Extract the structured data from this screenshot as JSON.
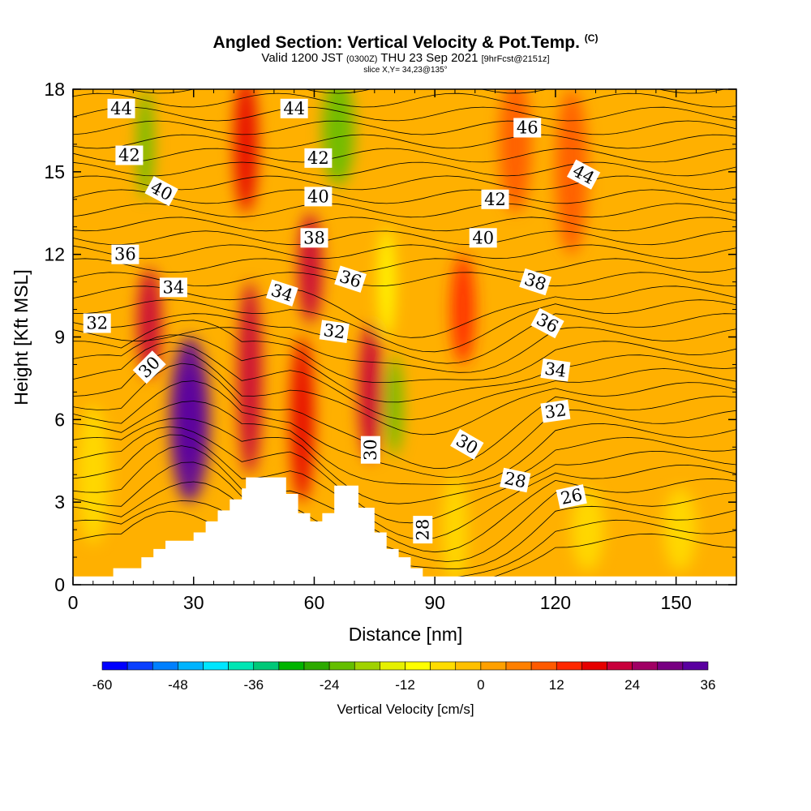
{
  "title": {
    "main": "Angled Section: Vertical Velocity & Pot.Temp.",
    "unit_tag": "(C)",
    "valid_prefix": "Valid 1200 JST",
    "utc_tag": "(0300Z)",
    "valid_date": "THU 23 Sep 2021",
    "forecast_tag": "[9hrFcst@2151z]",
    "slice": "slice X,Y= 34,23@135°"
  },
  "chart_data": {
    "type": "heatmap",
    "xlabel": "Distance [nm]",
    "ylabel": "Height [Kft MSL]",
    "xlim": [
      0,
      165
    ],
    "ylim": [
      0,
      18
    ],
    "x_ticks": [
      0,
      30,
      60,
      90,
      120,
      150
    ],
    "y_ticks": [
      0,
      3,
      6,
      9,
      12,
      15,
      18
    ],
    "colorbar": {
      "label": "Vertical Velocity [cm/s]",
      "ticks": [
        -60,
        -48,
        -36,
        -24,
        -12,
        0,
        12,
        24,
        36
      ],
      "min": -60,
      "max": 36,
      "step": 4,
      "colors": [
        "#0000ff",
        "#0a40ff",
        "#0080ff",
        "#00b4ff",
        "#00e6ff",
        "#00e6b4",
        "#00c878",
        "#00b400",
        "#2daa00",
        "#64be00",
        "#a0d200",
        "#e6f000",
        "#ffff00",
        "#ffdc00",
        "#ffc000",
        "#ffa000",
        "#ff8000",
        "#ff5a00",
        "#ff2800",
        "#e60000",
        "#c8003c",
        "#a00064",
        "#780082",
        "#5a00a0"
      ]
    },
    "terrain": [
      [
        0,
        0.3
      ],
      [
        10,
        0.3
      ],
      [
        10,
        0.6
      ],
      [
        17,
        0.6
      ],
      [
        17,
        1.0
      ],
      [
        20,
        1.0
      ],
      [
        20,
        1.3
      ],
      [
        23,
        1.3
      ],
      [
        23,
        1.6
      ],
      [
        30,
        1.6
      ],
      [
        30,
        1.9
      ],
      [
        33,
        1.9
      ],
      [
        33,
        2.3
      ],
      [
        36,
        2.3
      ],
      [
        36,
        2.7
      ],
      [
        39,
        2.7
      ],
      [
        39,
        3.1
      ],
      [
        42,
        3.1
      ],
      [
        42,
        3.5
      ],
      [
        43,
        3.5
      ],
      [
        43,
        3.9
      ],
      [
        53,
        3.9
      ],
      [
        53,
        3.3
      ],
      [
        56,
        3.3
      ],
      [
        56,
        2.6
      ],
      [
        59,
        2.6
      ],
      [
        59,
        2.3
      ],
      [
        62,
        2.3
      ],
      [
        62,
        2.6
      ],
      [
        65,
        2.6
      ],
      [
        65,
        3.6
      ],
      [
        71,
        3.6
      ],
      [
        71,
        2.8
      ],
      [
        75,
        2.8
      ],
      [
        75,
        1.9
      ],
      [
        78,
        1.9
      ],
      [
        78,
        1.3
      ],
      [
        81,
        1.3
      ],
      [
        81,
        1.0
      ],
      [
        84,
        1.0
      ],
      [
        84,
        0.6
      ],
      [
        87,
        0.6
      ],
      [
        87,
        0.3
      ],
      [
        165,
        0.3
      ]
    ],
    "velocity_cells": [
      {
        "x": 29,
        "y": 6.0,
        "rx": 5,
        "ry": 3.0,
        "value": 34
      },
      {
        "x": 29,
        "y": 6.0,
        "rx": 3,
        "ry": 1.8,
        "value": 36
      },
      {
        "x": 19,
        "y": 9.5,
        "rx": 3,
        "ry": 2.0,
        "value": 22
      },
      {
        "x": 44,
        "y": 7.5,
        "rx": 3,
        "ry": 3.5,
        "value": 22
      },
      {
        "x": 57,
        "y": 6.0,
        "rx": 3,
        "ry": 3.0,
        "value": 18
      },
      {
        "x": 59,
        "y": 11.5,
        "rx": 3,
        "ry": 2.0,
        "value": 22
      },
      {
        "x": 74,
        "y": 7.0,
        "rx": 3,
        "ry": 2.5,
        "value": 22
      },
      {
        "x": 43,
        "y": 16.0,
        "rx": 3,
        "ry": 2.5,
        "value": 18
      },
      {
        "x": 18,
        "y": 16.0,
        "rx": 2,
        "ry": 2.0,
        "value": -22
      },
      {
        "x": 66,
        "y": 16.5,
        "rx": 4,
        "ry": 2.0,
        "value": -22
      },
      {
        "x": 80,
        "y": 6.5,
        "rx": 2,
        "ry": 1.8,
        "value": -22
      },
      {
        "x": 78,
        "y": 11.0,
        "rx": 2,
        "ry": 2.0,
        "value": -10
      },
      {
        "x": 97,
        "y": 10.0,
        "rx": 3,
        "ry": 2.0,
        "value": 12
      },
      {
        "x": 110,
        "y": 16.0,
        "rx": 4,
        "ry": 2.5,
        "value": 10
      },
      {
        "x": 124,
        "y": 15.0,
        "rx": 4,
        "ry": 3.0,
        "value": 10
      },
      {
        "x": 95,
        "y": 2.0,
        "rx": 3,
        "ry": 2.0,
        "value": -8
      },
      {
        "x": 128,
        "y": 2.0,
        "rx": 4,
        "ry": 1.5,
        "value": -6
      },
      {
        "x": 151,
        "y": 2.0,
        "rx": 4,
        "ry": 1.5,
        "value": -8
      },
      {
        "x": 5,
        "y": 4.0,
        "rx": 4,
        "ry": 2.5,
        "value": -6
      }
    ],
    "contour_labels": [
      {
        "x": 12,
        "y": 17.3,
        "text": "44",
        "angle": 0
      },
      {
        "x": 14,
        "y": 15.6,
        "text": "42",
        "angle": 0
      },
      {
        "x": 22,
        "y": 14.3,
        "text": "40",
        "angle": 28
      },
      {
        "x": 13,
        "y": 12.0,
        "text": "36",
        "angle": 0
      },
      {
        "x": 25,
        "y": 10.8,
        "text": "34",
        "angle": 0
      },
      {
        "x": 6,
        "y": 9.5,
        "text": "32",
        "angle": 0
      },
      {
        "x": 19,
        "y": 7.9,
        "text": "30",
        "angle": -45
      },
      {
        "x": 55,
        "y": 17.3,
        "text": "44",
        "angle": 0
      },
      {
        "x": 61,
        "y": 15.5,
        "text": "42",
        "angle": 0
      },
      {
        "x": 61,
        "y": 14.1,
        "text": "40",
        "angle": 0
      },
      {
        "x": 60,
        "y": 12.6,
        "text": "38",
        "angle": 0
      },
      {
        "x": 69,
        "y": 11.1,
        "text": "36",
        "angle": 18
      },
      {
        "x": 52,
        "y": 10.6,
        "text": "34",
        "angle": 18
      },
      {
        "x": 65,
        "y": 9.2,
        "text": "32",
        "angle": 8
      },
      {
        "x": 113,
        "y": 16.6,
        "text": "46",
        "angle": 0
      },
      {
        "x": 127,
        "y": 14.9,
        "text": "44",
        "angle": 28
      },
      {
        "x": 105,
        "y": 14.0,
        "text": "42",
        "angle": 0
      },
      {
        "x": 102,
        "y": 12.6,
        "text": "40",
        "angle": 0
      },
      {
        "x": 115,
        "y": 11.0,
        "text": "38",
        "angle": 18
      },
      {
        "x": 118,
        "y": 9.5,
        "text": "36",
        "angle": 28
      },
      {
        "x": 120,
        "y": 7.8,
        "text": "34",
        "angle": 8
      },
      {
        "x": 120,
        "y": 6.3,
        "text": "32",
        "angle": -8
      },
      {
        "x": 74,
        "y": 4.9,
        "text": "30",
        "angle": -90
      },
      {
        "x": 98,
        "y": 5.1,
        "text": "30",
        "angle": 30
      },
      {
        "x": 110,
        "y": 3.8,
        "text": "28",
        "angle": 12
      },
      {
        "x": 124,
        "y": 3.2,
        "text": "26",
        "angle": -12
      },
      {
        "x": 87,
        "y": 2.0,
        "text": "28",
        "angle": -90
      }
    ]
  }
}
